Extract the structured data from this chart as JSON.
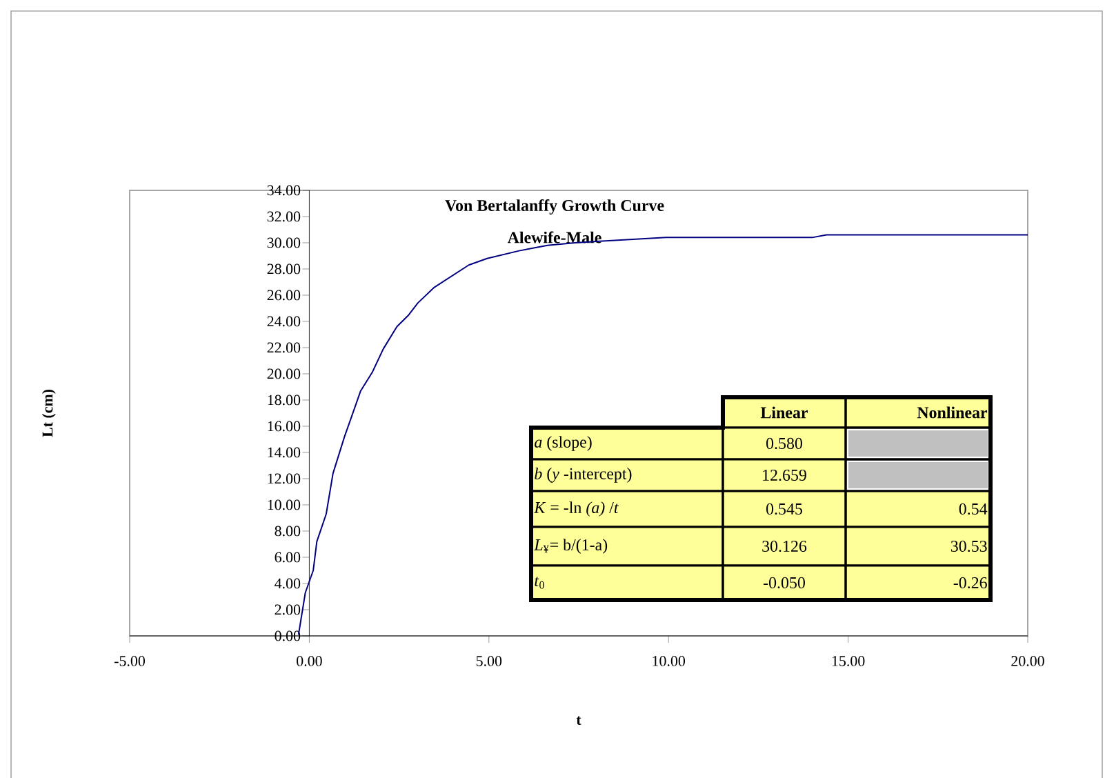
{
  "chart_data": {
    "type": "line",
    "title": "Von Bertalanffy Growth Curve",
    "subtitle": "Alewife-Male",
    "xlabel": "t",
    "ylabel": "Lt (cm)",
    "series": [
      {
        "color": "#000080",
        "x": [
          -0.3,
          -0.11,
          0.11,
          0.21,
          0.47,
          0.66,
          0.98,
          1.43,
          1.75,
          2.06,
          2.44,
          2.77,
          3.02,
          3.48,
          4.44,
          4.95,
          5.86,
          6.63,
          7.4,
          8.0,
          9.93,
          14.0,
          14.4,
          20.0
        ],
        "values": [
          0.1,
          3.3,
          5.0,
          7.2,
          9.3,
          12.4,
          15.2,
          18.7,
          20.1,
          21.9,
          23.6,
          24.5,
          25.4,
          26.6,
          28.3,
          28.8,
          29.4,
          29.8,
          30.0,
          30.1,
          30.4,
          30.4,
          30.6,
          30.6
        ]
      }
    ],
    "xlim": [
      -5,
      20
    ],
    "ylim": [
      0,
      34
    ],
    "xticks": [
      {
        "value": -5,
        "label": "-5.00"
      },
      {
        "value": 0,
        "label": "0.00"
      },
      {
        "value": 5,
        "label": "5.00"
      },
      {
        "value": 10,
        "label": "10.00"
      },
      {
        "value": 15,
        "label": "15.00"
      },
      {
        "value": 20,
        "label": "20.00"
      }
    ],
    "yticks": [
      {
        "value": 0,
        "label": "0.00"
      },
      {
        "value": 2,
        "label": "2.00"
      },
      {
        "value": 4,
        "label": "4.00"
      },
      {
        "value": 6,
        "label": "6.00"
      },
      {
        "value": 8,
        "label": "8.00"
      },
      {
        "value": 10,
        "label": "10.00"
      },
      {
        "value": 12,
        "label": "12.00"
      },
      {
        "value": 14,
        "label": "14.00"
      },
      {
        "value": 16,
        "label": "16.00"
      },
      {
        "value": 18,
        "label": "18.00"
      },
      {
        "value": 20,
        "label": "20.00"
      },
      {
        "value": 22,
        "label": "22.00"
      },
      {
        "value": 24,
        "label": "24.00"
      },
      {
        "value": 26,
        "label": "26.00"
      },
      {
        "value": 28,
        "label": "28.00"
      },
      {
        "value": 30,
        "label": "30.00"
      },
      {
        "value": 32,
        "label": "32.00"
      },
      {
        "value": 34,
        "label": "34.00"
      }
    ],
    "grid": false,
    "marker": "none",
    "line_style": "solid",
    "annotations": [
      "**Linear**",
      "**Nonlinear**",
      "*a*  (slope)",
      "0.580",
      "*b*  (*y* -intercept)",
      "12.659",
      "*K*  = -ln *(a)* /*t*",
      "0.545",
      "0.54",
      "*L*$_{¥}$= b/(1-a)",
      "30.126",
      "30.53",
      "*t*$_{0}$",
      "-0.050",
      "-0.26"
    ]
  }
}
